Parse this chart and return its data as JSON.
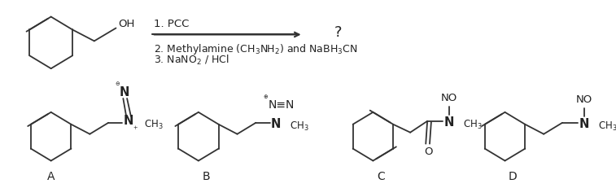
{
  "background_color": "#ffffff",
  "text_color": "#222222",
  "fs": 9.5,
  "fs_label": 10,
  "fs_small": 8,
  "step1": "1. PCC",
  "step2": "2. Methylamine (CH$_3$NH$_2$) and NaBH$_3$CN",
  "step3": "3. NaNO$_2$ / HCl",
  "label_A": "A",
  "label_B": "B",
  "label_C": "C",
  "label_D": "D"
}
